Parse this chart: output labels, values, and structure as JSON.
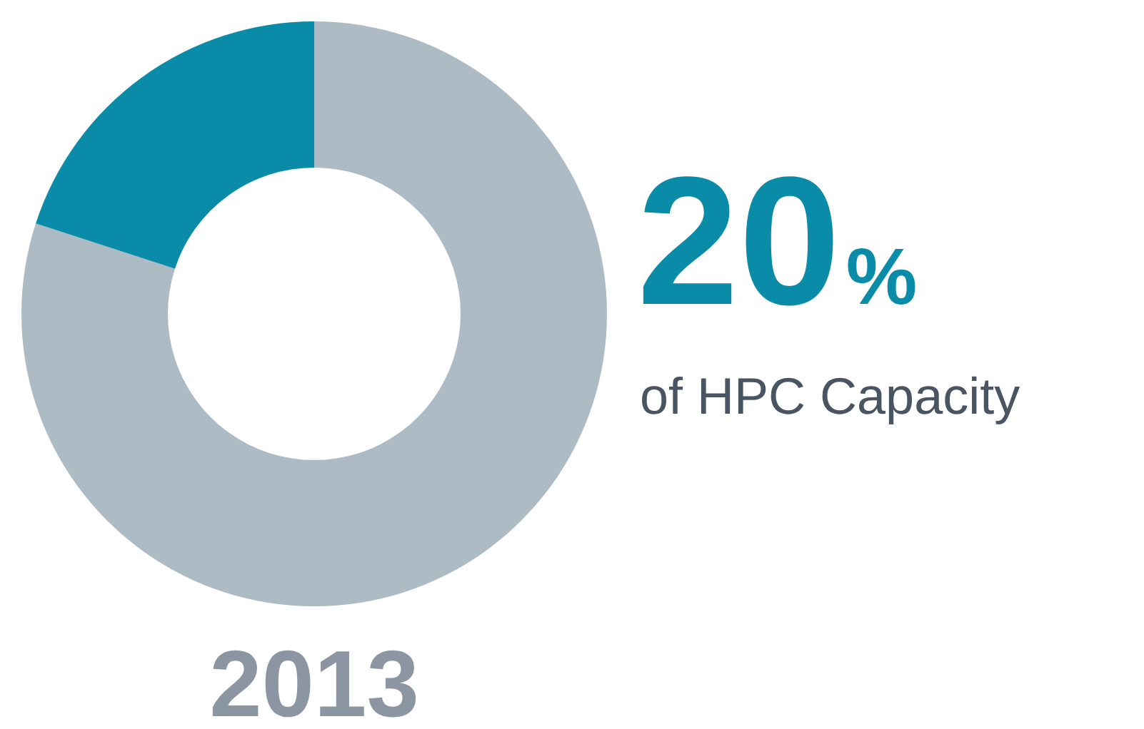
{
  "chart_data": {
    "type": "donut",
    "title": "2013",
    "categories": [
      null,
      null
    ],
    "values": [
      80,
      20
    ],
    "colors": [
      "#adbbc5",
      "#0a8ca8"
    ],
    "annotations": [
      "20%",
      "of HPC Capacity"
    ],
    "legend": false
  }
}
